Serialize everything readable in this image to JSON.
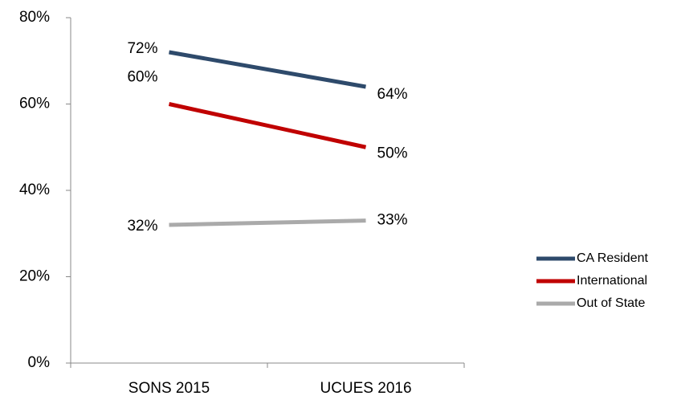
{
  "chart_data": {
    "type": "line",
    "categories": [
      "SONS 2015",
      "UCUES 2016"
    ],
    "series": [
      {
        "name": "CA Resident",
        "color": "#2e4a6b",
        "values": [
          72,
          64
        ],
        "value_labels": [
          "72%",
          "64%"
        ]
      },
      {
        "name": "International",
        "color": "#c00000",
        "values": [
          60,
          50
        ],
        "value_labels": [
          "60%",
          "50%"
        ]
      },
      {
        "name": "Out of State",
        "color": "#aaaaaa",
        "values": [
          32,
          33
        ],
        "value_labels": [
          "32%",
          "33%"
        ]
      }
    ],
    "ylim": [
      0,
      80
    ],
    "yticks": [
      {
        "value": 0,
        "label": "0%"
      },
      {
        "value": 20,
        "label": "20%"
      },
      {
        "value": 40,
        "label": "40%"
      },
      {
        "value": 60,
        "label": "60%"
      },
      {
        "value": 80,
        "label": "80%"
      }
    ],
    "legend": "right"
  }
}
